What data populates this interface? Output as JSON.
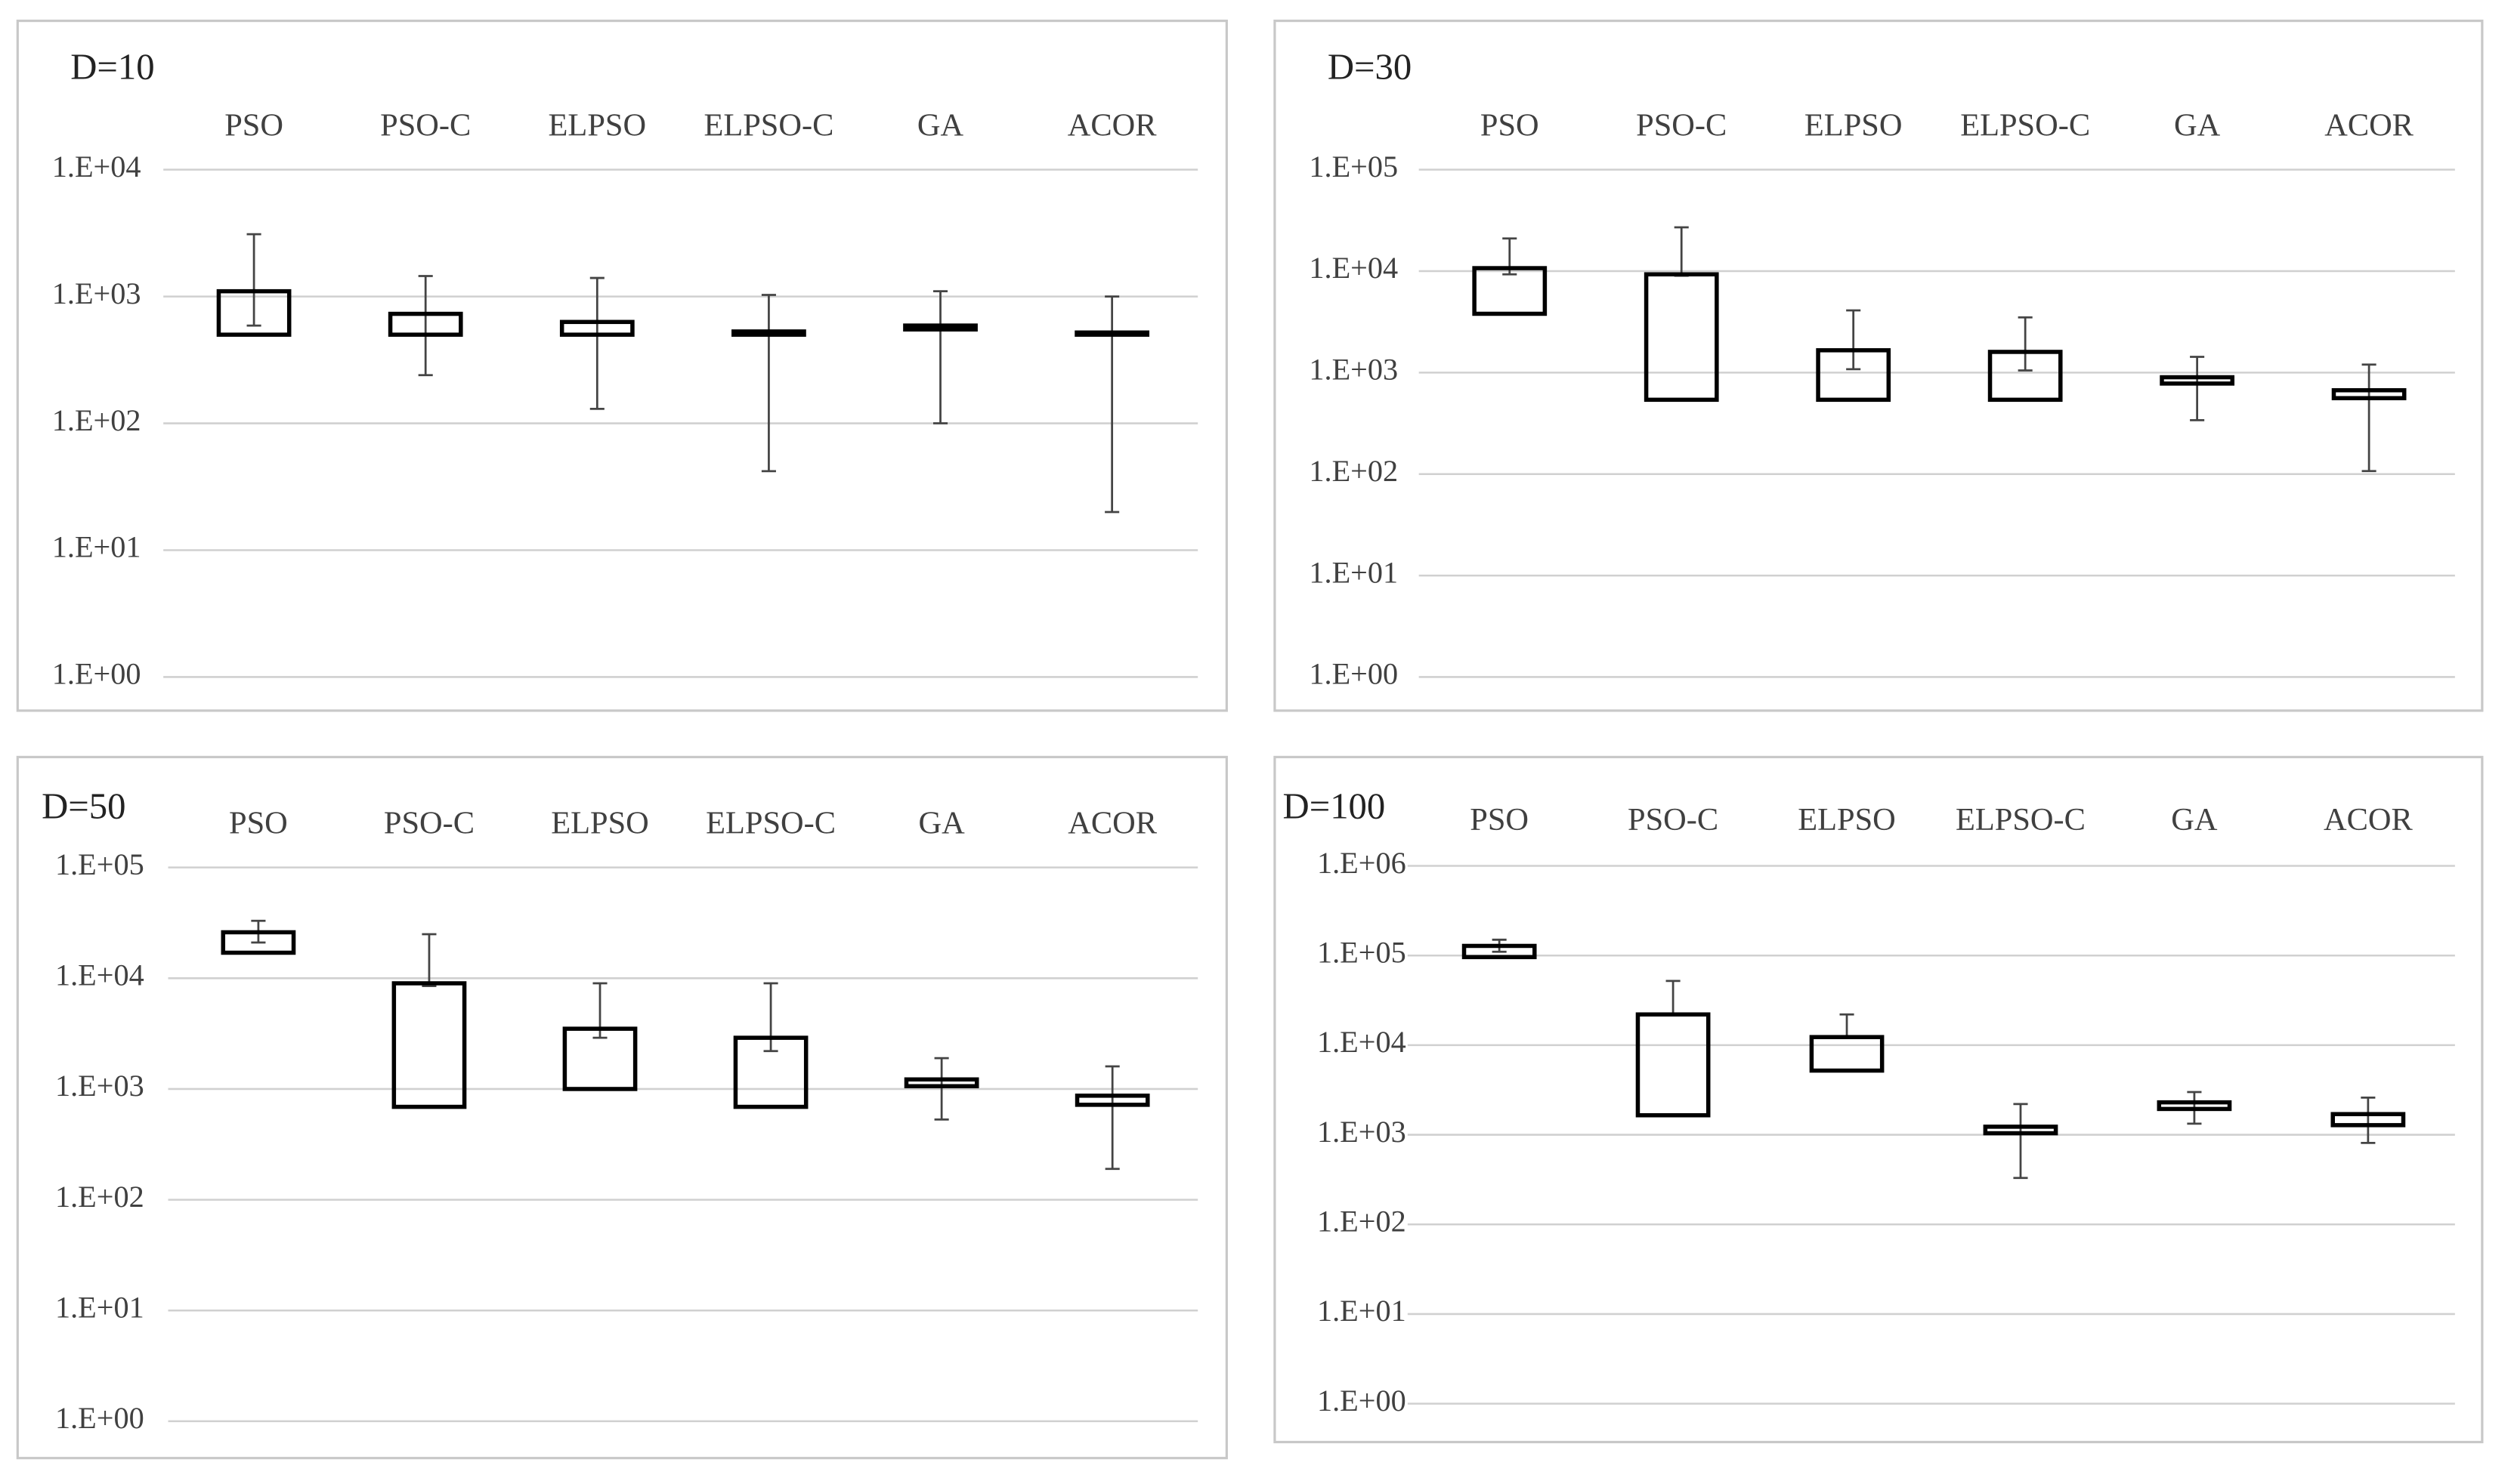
{
  "chart_data": [
    {
      "type": "box",
      "title": "D=10",
      "log_scale": true,
      "grid": true,
      "categories": [
        "PSO",
        "PSO-C",
        "ELPSO",
        "ELPSO-C",
        "GA",
        "ACOR"
      ],
      "q3": [
        1100,
        730,
        630,
        530,
        590,
        520
      ],
      "q1": [
        500,
        500,
        500,
        500,
        550,
        500
      ],
      "high": [
        3100,
        1450,
        1400,
        1030,
        1100,
        1000
      ],
      "low": [
        590,
        240,
        130,
        42,
        100,
        20
      ],
      "ylim": [
        1,
        10000
      ],
      "yticks": [
        {
          "value": 1,
          "label": "1.E+00"
        },
        {
          "value": 10,
          "label": "1.E+01"
        },
        {
          "value": 100,
          "label": "1.E+02"
        },
        {
          "value": 1000,
          "label": "1.E+03"
        },
        {
          "value": 10000,
          "label": "1.E+04"
        }
      ]
    },
    {
      "type": "box",
      "title": "D=30",
      "log_scale": true,
      "grid": true,
      "categories": [
        "PSO",
        "PSO-C",
        "ELPSO",
        "ELPSO-C",
        "GA",
        "ACOR"
      ],
      "q3": [
        10700,
        9300,
        1660,
        1600,
        900,
        670
      ],
      "q1": [
        3800,
        540,
        540,
        540,
        780,
        560
      ],
      "high": [
        21000,
        27000,
        4100,
        3500,
        1430,
        1200
      ],
      "low": [
        9300,
        9000,
        1080,
        1050,
        340,
        107
      ],
      "ylim": [
        1,
        100000
      ],
      "yticks": [
        {
          "value": 1,
          "label": "1.E+00"
        },
        {
          "value": 10,
          "label": "1.E+01"
        },
        {
          "value": 100,
          "label": "1.E+02"
        },
        {
          "value": 1000,
          "label": "1.E+03"
        },
        {
          "value": 10000,
          "label": "1.E+04"
        },
        {
          "value": 100000,
          "label": "1.E+05"
        }
      ]
    },
    {
      "type": "box",
      "title": "D=50",
      "log_scale": true,
      "grid": true,
      "categories": [
        "PSO",
        "PSO-C",
        "ELPSO",
        "ELPSO-C",
        "GA",
        "ACOR"
      ],
      "q3": [
        26000,
        9000,
        3500,
        2900,
        1220,
        870
      ],
      "q1": [
        17000,
        690,
        1000,
        690,
        1060,
        720
      ],
      "high": [
        33000,
        25000,
        9000,
        9000,
        1900,
        1600
      ],
      "low": [
        21000,
        8500,
        2900,
        2200,
        530,
        190
      ],
      "ylim": [
        1,
        100000
      ],
      "yticks": [
        {
          "value": 1,
          "label": "1.E+00"
        },
        {
          "value": 10,
          "label": "1.E+01"
        },
        {
          "value": 100,
          "label": "1.E+02"
        },
        {
          "value": 1000,
          "label": "1.E+03"
        },
        {
          "value": 10000,
          "label": "1.E+04"
        },
        {
          "value": 100000,
          "label": "1.E+05"
        }
      ]
    },
    {
      "type": "box",
      "title": "D=100",
      "log_scale": true,
      "grid": true,
      "categories": [
        "PSO",
        "PSO-C",
        "ELPSO",
        "ELPSO-C",
        "GA",
        "ACOR"
      ],
      "q3": [
        128000,
        22000,
        12300,
        1230,
        2300,
        1700
      ],
      "q1": [
        96000,
        1650,
        5200,
        1040,
        1940,
        1280
      ],
      "high": [
        150000,
        52000,
        22000,
        2200,
        3000,
        2600
      ],
      "low": [
        110000,
        22000,
        12000,
        330,
        1330,
        810
      ],
      "ylim": [
        1,
        1000000
      ],
      "yticks": [
        {
          "value": 1,
          "label": "1.E+00"
        },
        {
          "value": 10,
          "label": "1.E+01"
        },
        {
          "value": 100,
          "label": "1.E+02"
        },
        {
          "value": 1000,
          "label": "1.E+03"
        },
        {
          "value": 10000,
          "label": "1.E+04"
        },
        {
          "value": 100000,
          "label": "1.E+05"
        },
        {
          "value": 1000000,
          "label": "1.E+06"
        }
      ]
    }
  ]
}
